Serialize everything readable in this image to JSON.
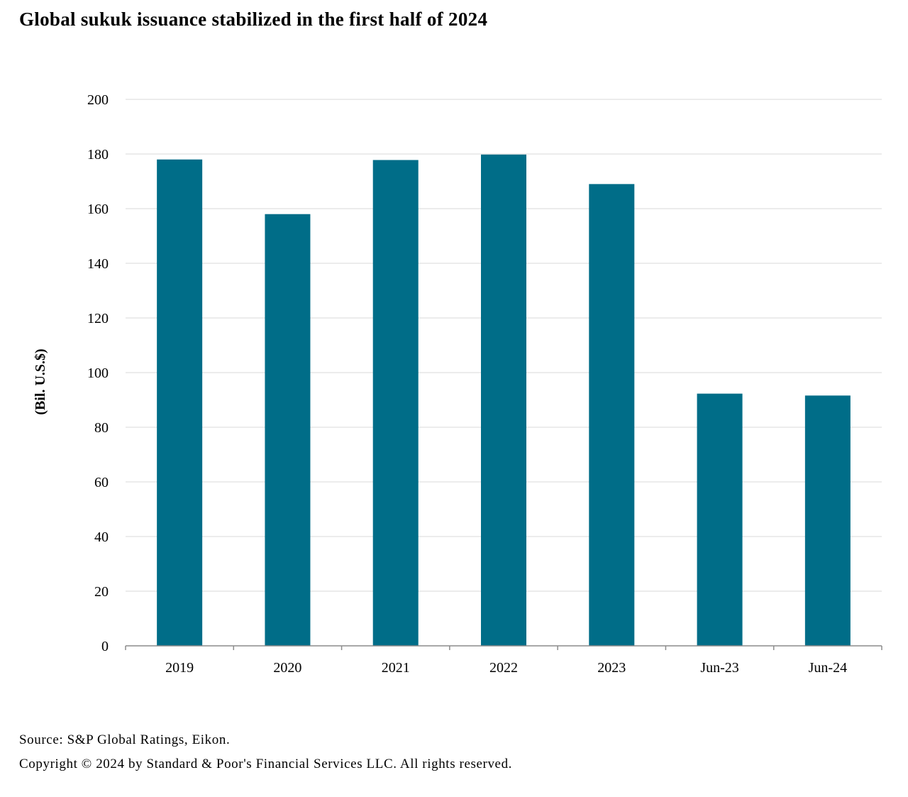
{
  "title": "Global sukuk issuance stabilized in the first half of 2024",
  "footer": {
    "source": "Source: S&P Global Ratings, Eikon.",
    "copyright": "Copyright © 2024 by Standard & Poor's Financial Services LLC. All rights reserved."
  },
  "chart_data": {
    "type": "bar",
    "title": "Global sukuk issuance stabilized in the first half of 2024",
    "xlabel": "",
    "ylabel": "(Bil. U.S.$)",
    "categories": [
      "2019",
      "2020",
      "2021",
      "2022",
      "2023",
      "Jun-23",
      "Jun-24"
    ],
    "series": [
      {
        "values": [
          178,
          158,
          177.8,
          179.8,
          169,
          92.3,
          91.6
        ]
      }
    ],
    "ylim": [
      0,
      200
    ],
    "yticks": [
      0,
      20,
      40,
      60,
      80,
      100,
      120,
      140,
      160,
      180,
      200
    ],
    "grid": true,
    "legend": "none",
    "bar_color": "#006d88"
  }
}
